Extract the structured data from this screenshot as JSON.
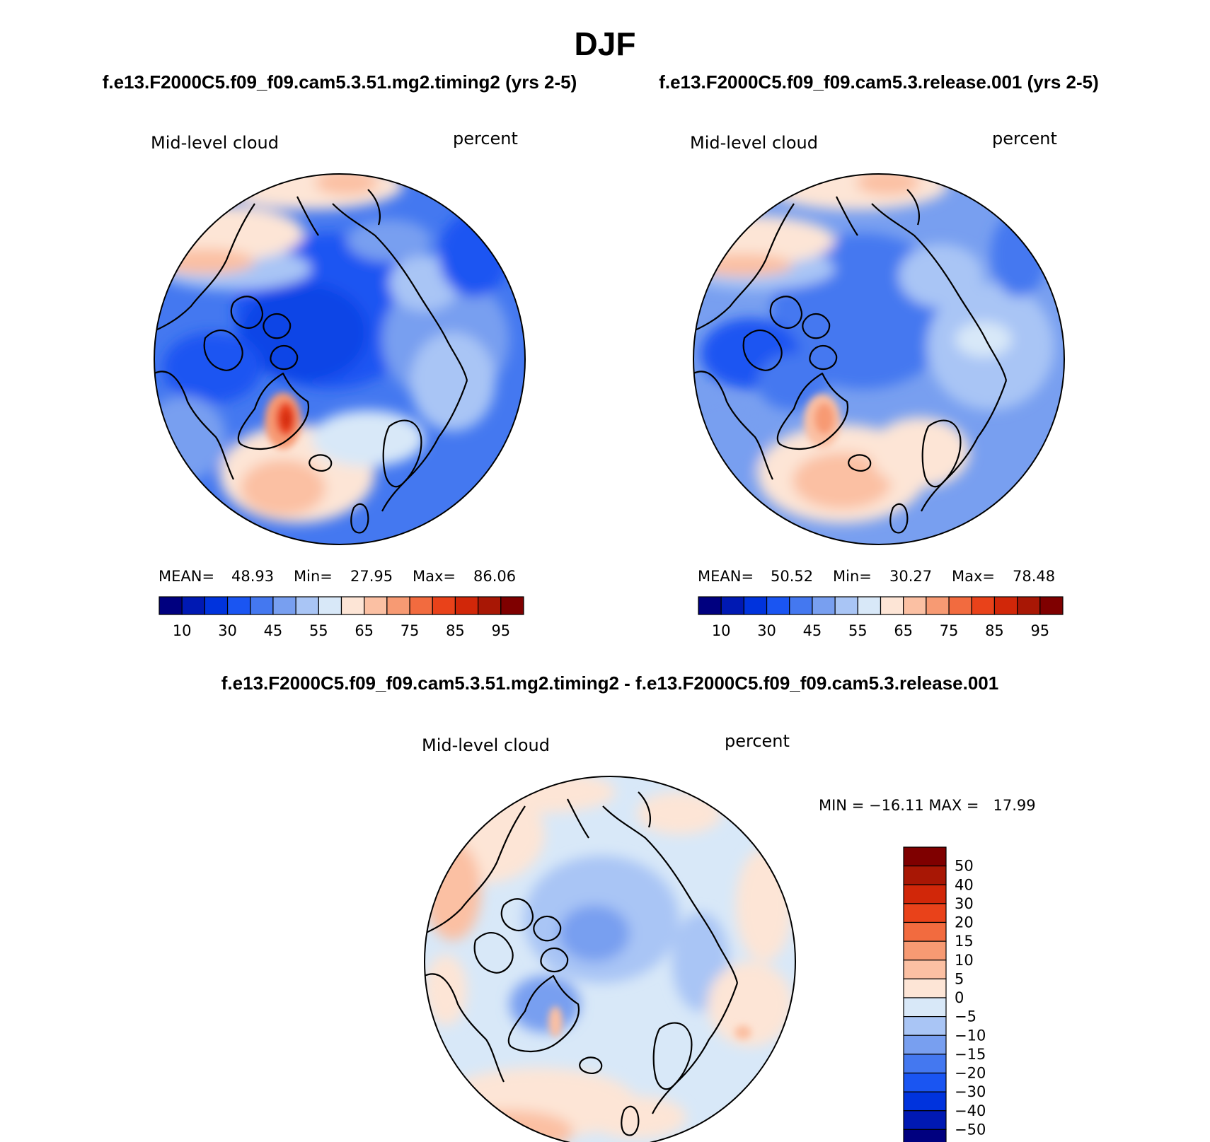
{
  "title": "DJF",
  "panels": [
    {
      "case_title": "f.e13.F2000C5.f09_f09.cam5.3.51.mg2.timing2 (yrs 2-5)",
      "variable": "Mid-level cloud",
      "units": "percent",
      "stats": {
        "mean_label": "MEAN=",
        "mean": "48.93",
        "min_label": "Min=",
        "min": "27.95",
        "max_label": "Max=",
        "max": "86.06"
      }
    },
    {
      "case_title": "f.e13.F2000C5.f09_f09.cam5.3.release.001 (yrs 2-5)",
      "variable": "Mid-level cloud",
      "units": "percent",
      "stats": {
        "mean_label": "MEAN=",
        "mean": "50.52",
        "min_label": "Min=",
        "min": "30.27",
        "max_label": "Max=",
        "max": "78.48"
      }
    }
  ],
  "abs_colorbar": {
    "colors": [
      "#00007f",
      "#0019b3",
      "#0033dd",
      "#1a55f2",
      "#4478f0",
      "#789ff0",
      "#a9c5f5",
      "#d8e8f8",
      "#fde5d6",
      "#fbc0a3",
      "#f79a73",
      "#f26b3f",
      "#e9421a",
      "#d12709",
      "#a81705",
      "#7f0000"
    ],
    "labels": [
      "10",
      "30",
      "45",
      "55",
      "65",
      "75",
      "85",
      "95"
    ]
  },
  "diff": {
    "title": "f.e13.F2000C5.f09_f09.cam5.3.51.mg2.timing2 - f.e13.F2000C5.f09_f09.cam5.3.release.001",
    "variable": "Mid-level cloud",
    "units": "percent",
    "minmax": "MIN = −16.11 MAX =   17.99",
    "colorbar": {
      "colors": [
        "#7f0000",
        "#a81705",
        "#d12709",
        "#e9421a",
        "#f26b3f",
        "#f79a73",
        "#fbc0a3",
        "#fde5d6",
        "#d8e8f8",
        "#a9c5f5",
        "#789ff0",
        "#4478f0",
        "#1a55f2",
        "#0033dd",
        "#0019b3",
        "#00007f"
      ],
      "labels": [
        "50",
        "40",
        "30",
        "20",
        "15",
        "10",
        "5",
        "0",
        "−5",
        "−10",
        "−15",
        "−20",
        "−30",
        "−40",
        "−50"
      ]
    }
  },
  "map_colors": {
    "ocean_low": "#0d45e6",
    "blue_mid": "#4478f0",
    "blue_light": "#789ff0",
    "blue_pale": "#a9c5f5",
    "near_white_blue": "#d8e8f8",
    "peach": "#fde5d6",
    "salmon": "#fbc0a3",
    "orange": "#f79a73",
    "red": "#e9421a"
  }
}
